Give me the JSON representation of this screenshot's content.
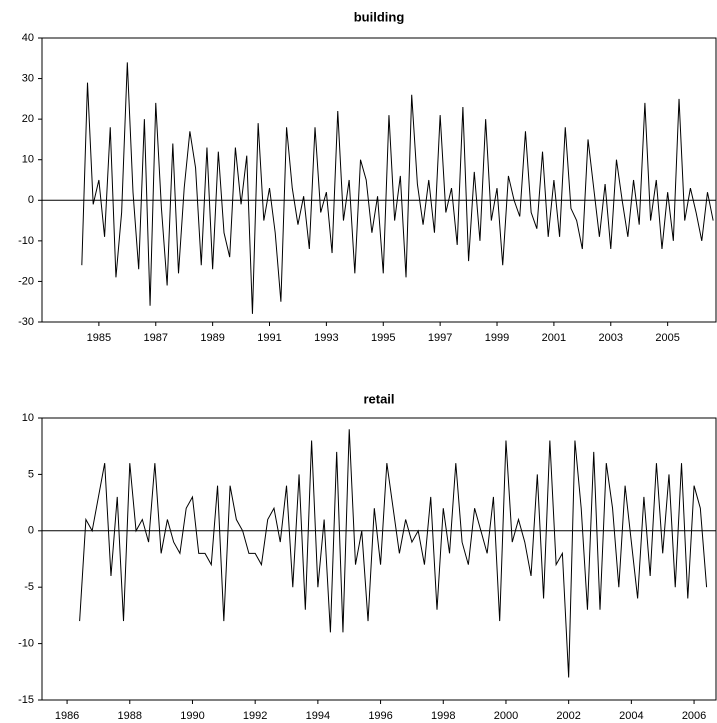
{
  "chart_data": [
    {
      "type": "line",
      "title": "building",
      "color": "#000000",
      "xlim": [
        1983,
        2006.7
      ],
      "ylim": [
        -30,
        40
      ],
      "xticks": [
        1985,
        1987,
        1989,
        1991,
        1993,
        1995,
        1997,
        1999,
        2001,
        2003,
        2005
      ],
      "yticks": [
        -30,
        -20,
        -10,
        0,
        10,
        20,
        30,
        40
      ],
      "x": [
        1984.4,
        1984.6,
        1984.8,
        1985,
        1985.2,
        1985.4,
        1985.6,
        1985.8,
        1986,
        1986.2,
        1986.4,
        1986.6,
        1986.8,
        1987,
        1987.2,
        1987.4,
        1987.6,
        1987.8,
        1988,
        1988.2,
        1988.4,
        1988.6,
        1988.8,
        1989,
        1989.2,
        1989.4,
        1989.6,
        1989.8,
        1990,
        1990.2,
        1990.4,
        1990.6,
        1990.8,
        1991,
        1991.2,
        1991.4,
        1991.6,
        1991.8,
        1992,
        1992.2,
        1992.4,
        1992.6,
        1992.8,
        1993,
        1993.2,
        1993.4,
        1993.6,
        1993.8,
        1994,
        1994.2,
        1994.4,
        1994.6,
        1994.8,
        1995,
        1995.2,
        1995.4,
        1995.6,
        1995.8,
        1996,
        1996.2,
        1996.4,
        1996.6,
        1996.8,
        1997,
        1997.2,
        1997.4,
        1997.6,
        1997.8,
        1998,
        1998.2,
        1998.4,
        1998.6,
        1998.8,
        1999,
        1999.2,
        1999.4,
        1999.6,
        1999.8,
        2000,
        2000.2,
        2000.4,
        2000.6,
        2000.8,
        2001,
        2001.2,
        2001.4,
        2001.6,
        2001.8,
        2002,
        2002.2,
        2002.4,
        2002.6,
        2002.8,
        2003,
        2003.2,
        2003.4,
        2003.6,
        2003.8,
        2004,
        2004.2,
        2004.4,
        2004.6,
        2004.8,
        2005,
        2005.2,
        2005.4,
        2005.6,
        2005.8,
        2006,
        2006.2,
        2006.4,
        2006.6
      ],
      "values": [
        -16,
        29,
        -1,
        5,
        -9,
        18,
        -19,
        -3,
        34,
        2,
        -17,
        20,
        -26,
        24,
        -2,
        -21,
        14,
        -18,
        3,
        17,
        8,
        -16,
        13,
        -17,
        12,
        -8,
        -14,
        13,
        -1,
        11,
        -28,
        19,
        -5,
        3,
        -8,
        -25,
        18,
        3,
        -6,
        1,
        -12,
        18,
        -3,
        2,
        -13,
        22,
        -5,
        5,
        -18,
        10,
        5,
        -8,
        1,
        -18,
        21,
        -5,
        6,
        -19,
        26,
        4,
        -6,
        5,
        -8,
        21,
        -3,
        3,
        -11,
        23,
        -15,
        7,
        -10,
        20,
        -5,
        3,
        -16,
        6,
        0,
        -4,
        17,
        -3,
        -7,
        12,
        -9,
        5,
        -9,
        18,
        -2,
        -5,
        -12,
        15,
        3,
        -9,
        4,
        -12,
        10,
        0,
        -9,
        5,
        -6,
        24,
        -5,
        5,
        -12,
        2,
        -10,
        25,
        -5,
        3,
        -3,
        -10,
        2,
        -5
      ]
    },
    {
      "type": "line",
      "title": "retail",
      "color": "#000000",
      "xlim": [
        1985.2,
        2006.7
      ],
      "ylim": [
        -15,
        10
      ],
      "xticks": [
        1986,
        1988,
        1990,
        1992,
        1994,
        1996,
        1998,
        2000,
        2002,
        2004,
        2006
      ],
      "yticks": [
        -15,
        -10,
        -5,
        0,
        5,
        10
      ],
      "x": [
        1986.4,
        1986.6,
        1986.8,
        1987,
        1987.2,
        1987.4,
        1987.6,
        1987.8,
        1988,
        1988.2,
        1988.4,
        1988.6,
        1988.8,
        1989,
        1989.2,
        1989.4,
        1989.6,
        1989.8,
        1990,
        1990.2,
        1990.4,
        1990.6,
        1990.8,
        1991,
        1991.2,
        1991.4,
        1991.6,
        1991.8,
        1992,
        1992.2,
        1992.4,
        1992.6,
        1992.8,
        1993,
        1993.2,
        1993.4,
        1993.6,
        1993.8,
        1994,
        1994.2,
        1994.4,
        1994.6,
        1994.8,
        1995,
        1995.2,
        1995.4,
        1995.6,
        1995.8,
        1996,
        1996.2,
        1996.4,
        1996.6,
        1996.8,
        1997,
        1997.2,
        1997.4,
        1997.6,
        1997.8,
        1998,
        1998.2,
        1998.4,
        1998.6,
        1998.8,
        1999,
        1999.2,
        1999.4,
        1999.6,
        1999.8,
        2000,
        2000.2,
        2000.4,
        2000.6,
        2000.8,
        2001,
        2001.2,
        2001.4,
        2001.6,
        2001.8,
        2002,
        2002.2,
        2002.4,
        2002.6,
        2002.8,
        2003,
        2003.2,
        2003.4,
        2003.6,
        2003.8,
        2004,
        2004.2,
        2004.4,
        2004.6,
        2004.8,
        2005,
        2005.2,
        2005.4,
        2005.6,
        2005.8,
        2006,
        2006.2,
        2006.4
      ],
      "values": [
        -8,
        1,
        0,
        3,
        6,
        -4,
        3,
        -8,
        6,
        0,
        1,
        -1,
        6,
        -2,
        1,
        -1,
        -2,
        2,
        3,
        -2,
        -2,
        -3,
        4,
        -8,
        4,
        1,
        0,
        -2,
        -2,
        -3,
        1,
        2,
        -1,
        4,
        -5,
        5,
        -7,
        8,
        -5,
        1,
        -9,
        7,
        -9,
        9,
        -3,
        0,
        -8,
        2,
        -3,
        6,
        2,
        -2,
        1,
        -1,
        0,
        -3,
        3,
        -7,
        2,
        -2,
        6,
        -1,
        -3,
        2,
        0,
        -2,
        3,
        -8,
        8,
        -1,
        1,
        -1,
        -4,
        5,
        -6,
        8,
        -3,
        -2,
        -13,
        8,
        2,
        -7,
        7,
        -7,
        6,
        2,
        -5,
        4,
        -1,
        -6,
        3,
        -4,
        6,
        -2,
        5,
        -5,
        6,
        -6,
        4,
        2,
        -5
      ]
    }
  ]
}
